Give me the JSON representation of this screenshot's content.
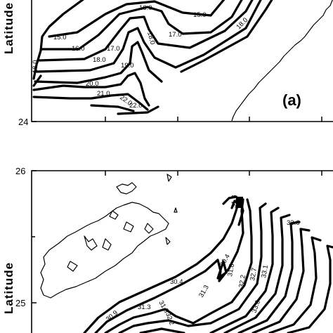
{
  "panel_a": {
    "ylabel": "Latitude",
    "ytick": "24",
    "panel_label": "(a)",
    "contour_labels": [
      "15.0",
      "15.0",
      "16.0",
      "16.0",
      "17.0",
      "17.0",
      "18.0",
      "18.0",
      "18.0",
      "19.0",
      "20.0",
      "21.0",
      "22.0",
      "22.0",
      "18.0"
    ]
  },
  "panel_b": {
    "ylabel": "Latitude",
    "yticks": [
      "26",
      "25"
    ],
    "contour_labels": [
      "30.4",
      "30.9",
      "31.3",
      "31.3",
      "31.3",
      "31.8",
      "31.8",
      "32.2",
      "32.2",
      "32.7",
      "33.1",
      "33.6",
      "33.6",
      "30.4"
    ]
  }
}
